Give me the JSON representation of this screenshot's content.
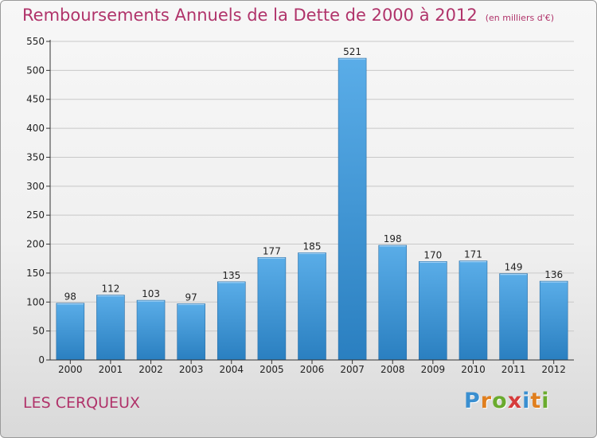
{
  "page": {
    "title": "Remboursements Annuels de la Dette de 2000 à 2012",
    "unit_note": "(en milliers d'€)",
    "place": "LES CERQUEUX",
    "logo": {
      "text": "Proxiti",
      "letters": [
        {
          "char": "P",
          "color": "#3a8fd0"
        },
        {
          "char": "r",
          "color": "#e07f1e"
        },
        {
          "char": "o",
          "color": "#6aab2e"
        },
        {
          "char": "x",
          "color": "#d63b3b"
        },
        {
          "char": "i",
          "color": "#3a8fd0"
        },
        {
          "char": "t",
          "color": "#e07f1e"
        },
        {
          "char": "i",
          "color": "#6aab2e"
        }
      ]
    }
  },
  "chart_data": {
    "type": "bar",
    "title": "Remboursements Annuels de la Dette de 2000 à 2012",
    "subtitle": "(en milliers d'€)",
    "xlabel": "",
    "ylabel": "",
    "categories": [
      "2000",
      "2001",
      "2002",
      "2003",
      "2004",
      "2005",
      "2006",
      "2007",
      "2008",
      "2009",
      "2010",
      "2011",
      "2012"
    ],
    "values": [
      98,
      112,
      103,
      97,
      135,
      177,
      185,
      521,
      198,
      170,
      171,
      149,
      136
    ],
    "data_labels": [
      "98",
      "112",
      "103",
      "97",
      "135",
      "177",
      "185",
      "521",
      "198",
      "170",
      "171",
      "149",
      "136"
    ],
    "ylim": [
      0,
      550
    ],
    "yticks": [
      0,
      50,
      100,
      150,
      200,
      250,
      300,
      350,
      400,
      450,
      500,
      550
    ],
    "ytick_labels": [
      "0",
      "50",
      "100",
      "150",
      "200",
      "250",
      "300",
      "350",
      "400",
      "450",
      "500",
      "550"
    ],
    "grid": true,
    "legend": "none",
    "colors": {
      "bar_light": "#5aade8",
      "bar_dark": "#2a7fc0",
      "grid": "#c8c8c8",
      "axis": "#333333",
      "title": "#b0336a"
    }
  }
}
